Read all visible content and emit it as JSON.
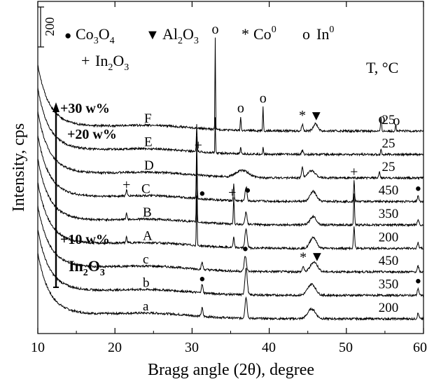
{
  "chart_data": {
    "type": "line",
    "xlabel": "Bragg angle (2θ), degree",
    "ylabel": "Intensity, cps",
    "xlim": [
      10,
      60
    ],
    "x_ticks": [
      10,
      20,
      30,
      40,
      50,
      60
    ],
    "x_tick_labels": [
      "10",
      "20",
      "30",
      "40",
      "50",
      "60"
    ],
    "scale_bar_label": "200",
    "temperature_header": "T, °C",
    "legend": {
      "co3o4": {
        "symbol": "●",
        "label": "Co3O4"
      },
      "al2o3": {
        "symbol": "▼",
        "label": "Al2O3"
      },
      "co0": {
        "symbol": "*",
        "label": "Co0"
      },
      "in0": {
        "symbol": "o",
        "label": "In0"
      },
      "in2o3": {
        "symbol": "+",
        "label": "In2O3"
      }
    },
    "in2o3_axis": {
      "base_label": "In2O3",
      "levels": [
        "+10 w%",
        "+20 w%",
        "+30 w%"
      ]
    },
    "series": [
      {
        "name": "a",
        "temperature": "200",
        "base": 0,
        "peaks": [
          [
            31.3,
            0.1,
            12
          ],
          [
            37,
            0.14,
            30
          ],
          [
            45.5,
            0.5,
            14
          ],
          [
            59.3,
            0.1,
            8
          ]
        ]
      },
      {
        "name": "b",
        "temperature": "350",
        "base": 1,
        "peaks": [
          [
            31.3,
            0.1,
            12
          ],
          [
            37,
            0.15,
            38
          ],
          [
            45.5,
            0.5,
            16
          ],
          [
            59.3,
            0.1,
            10
          ]
        ],
        "markers": [
          {
            "symbol": "●",
            "x": 31.3
          },
          {
            "symbol": "●",
            "x": 59.3
          }
        ]
      },
      {
        "name": "c",
        "temperature": "450",
        "base": 2,
        "peaks": [
          [
            31.3,
            0.1,
            10
          ],
          [
            36.9,
            0.14,
            22
          ],
          [
            44.4,
            0.1,
            8
          ],
          [
            45.8,
            0.45,
            14
          ],
          [
            59.3,
            0.1,
            8
          ]
        ],
        "markers": [
          {
            "symbol": "●",
            "x": 36.9
          },
          {
            "symbol": "*",
            "x": 44.4
          },
          {
            "symbol": "▼",
            "x": 46.2
          }
        ]
      },
      {
        "name": "A",
        "temperature": "200",
        "base": 3,
        "peaks": [
          [
            21.5,
            0.08,
            8
          ],
          [
            30.6,
            0.05,
            72
          ],
          [
            35.4,
            0.08,
            14
          ],
          [
            37,
            0.15,
            26
          ],
          [
            45.7,
            0.4,
            16
          ],
          [
            51,
            0.08,
            30
          ],
          [
            59.3,
            0.1,
            8
          ]
        ]
      },
      {
        "name": "B",
        "temperature": "350",
        "base": 4,
        "peaks": [
          [
            21.5,
            0.08,
            9
          ],
          [
            30.6,
            0.05,
            96
          ],
          [
            35.4,
            0.06,
            38
          ],
          [
            37,
            0.12,
            18
          ],
          [
            45.7,
            0.4,
            12
          ],
          [
            51,
            0.06,
            44
          ],
          [
            59.3,
            0.1,
            8
          ]
        ]
      },
      {
        "name": "C",
        "temperature": "450",
        "base": 5,
        "peaks": [
          [
            21.5,
            0.08,
            8
          ],
          [
            30.6,
            0.05,
            90
          ],
          [
            35.4,
            0.06,
            24
          ],
          [
            37,
            0.12,
            20
          ],
          [
            45.7,
            0.4,
            14
          ],
          [
            51,
            0.06,
            30
          ],
          [
            59.3,
            0.1,
            8
          ]
        ],
        "markers": [
          {
            "symbol": "+",
            "x": 21.5
          },
          {
            "symbol": "●",
            "x": 31.3
          },
          {
            "symbol": "+",
            "x": 35.2
          },
          {
            "symbol": "●",
            "x": 37.2
          },
          {
            "symbol": "+",
            "x": 51
          },
          {
            "symbol": "●",
            "x": 59.3
          }
        ]
      },
      {
        "name": "D",
        "temperature": "25",
        "base": 6,
        "peaks": [
          [
            36.5,
            0.8,
            10
          ],
          [
            44.3,
            0.1,
            16
          ],
          [
            45.5,
            0.5,
            10
          ],
          [
            54.3,
            0.08,
            8
          ]
        ]
      },
      {
        "name": "E",
        "temperature": "25",
        "base": 7,
        "peaks": [
          [
            30.6,
            0.05,
            38
          ],
          [
            33,
            0.04,
            50
          ],
          [
            36.3,
            0.06,
            8
          ],
          [
            39.2,
            0.05,
            10
          ],
          [
            44.3,
            0.1,
            6
          ],
          [
            54.5,
            0.06,
            8
          ]
        ],
        "markers": [
          {
            "symbol": "+",
            "x": 30.8
          }
        ]
      },
      {
        "name": "F",
        "temperature": "25",
        "base": 8,
        "peaks": [
          [
            33,
            0.04,
            132
          ],
          [
            36.3,
            0.05,
            20
          ],
          [
            39.2,
            0.05,
            34
          ],
          [
            44.3,
            0.1,
            10
          ],
          [
            46,
            0.3,
            10
          ],
          [
            54.5,
            0.06,
            20
          ],
          [
            56.4,
            0.06,
            10
          ]
        ],
        "markers": [
          {
            "symbol": "o",
            "x": 33
          },
          {
            "symbol": "o",
            "x": 36.3
          },
          {
            "symbol": "o",
            "x": 39.2
          },
          {
            "symbol": "*",
            "x": 44.3
          },
          {
            "symbol": "▼",
            "x": 46.1
          },
          {
            "symbol": "o",
            "x": 54.6
          },
          {
            "symbol": "o",
            "x": 56.5
          }
        ]
      }
    ]
  }
}
